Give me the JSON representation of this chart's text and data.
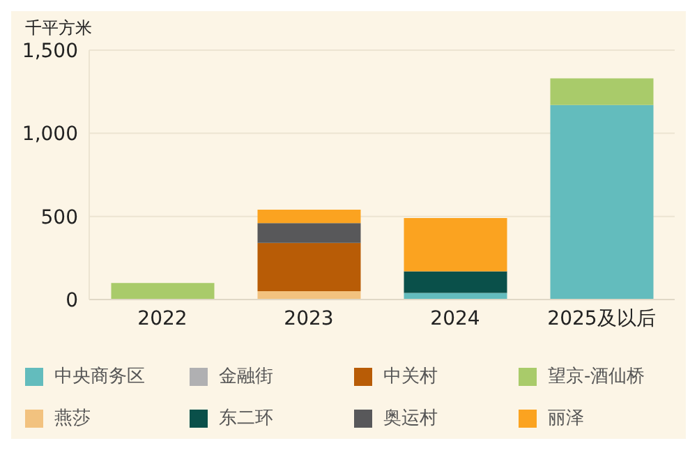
{
  "chart_data": {
    "type": "bar",
    "ylabel": "千平方米",
    "categories": [
      "2022",
      "2023",
      "2024",
      "2025及以后"
    ],
    "stacked": true,
    "ylim": [
      0,
      1500
    ],
    "yticks": [
      0,
      500,
      {
        "value": 1000,
        "label": "1,000"
      },
      {
        "value": 1500,
        "label": "1,500"
      }
    ],
    "grid": "y",
    "legend": "bottom",
    "series": [
      {
        "name": "中央商务区",
        "color": "#63bcbd",
        "values": [
          null,
          null,
          40,
          1170
        ]
      },
      {
        "name": "燕莎",
        "color": "#f2c27f",
        "values": [
          null,
          50,
          null,
          null
        ]
      },
      {
        "name": "金融街",
        "color": "#b0b0b2",
        "values": [
          null,
          null,
          null,
          null
        ]
      },
      {
        "name": "东二环",
        "color": "#0a504a",
        "values": [
          null,
          null,
          130,
          null
        ]
      },
      {
        "name": "中关村",
        "color": "#b85c06",
        "values": [
          null,
          290,
          null,
          null
        ]
      },
      {
        "name": "奥运村",
        "color": "#58585a",
        "values": [
          null,
          120,
          null,
          null
        ]
      },
      {
        "name": "望京-酒仙桥",
        "color": "#a9cb6a",
        "values": [
          100,
          null,
          null,
          160
        ]
      },
      {
        "name": "丽泽",
        "color": "#fba320",
        "values": [
          null,
          80,
          320,
          null
        ]
      }
    ]
  }
}
